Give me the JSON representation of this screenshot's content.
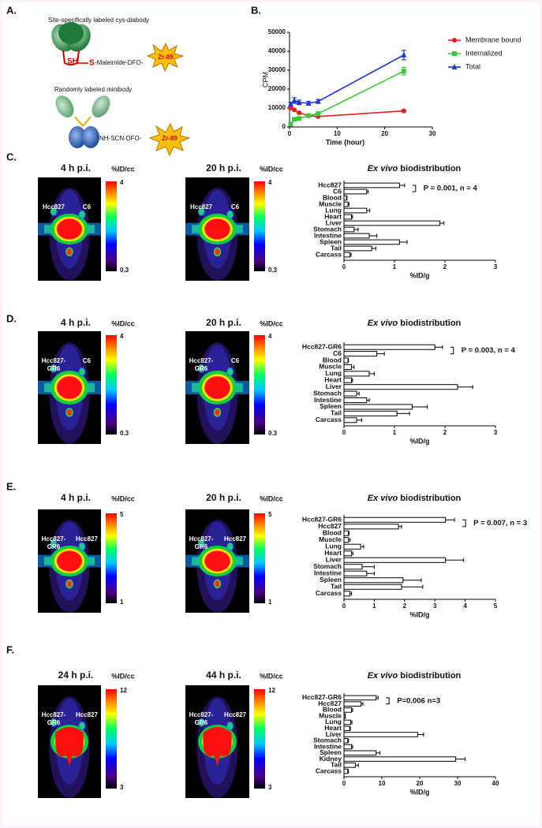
{
  "panel_a": {
    "label": "A.",
    "top_title": "Site-specifically labeled cys-diabody",
    "sh": "SH",
    "s": "S",
    "linker_top": "-Maleimide-DFO-",
    "isotope": "Zr-89",
    "bottom_title": "Randomly labeled minibody",
    "linker_bottom": "NH-SCN-DFO-"
  },
  "panel_b": {
    "label": "B."
  },
  "image_rows": [
    {
      "label": "C.",
      "colorbar": {
        "title": "%ID/cc",
        "max": 4,
        "min": 0.3
      },
      "images": [
        {
          "time": "4 h p.i.",
          "tumors": [
            [
              "Hcc827"
            ],
            [
              "C6"
            ]
          ]
        },
        {
          "time": "20 h p.i.",
          "tumors": [
            [
              "Hcc827"
            ],
            [
              "C6"
            ]
          ]
        }
      ]
    },
    {
      "label": "D.",
      "colorbar": {
        "title": "%ID/cc",
        "max": 4,
        "min": 0.3
      },
      "images": [
        {
          "time": "4 h p.i.",
          "tumors": [
            [
              "Hcc827-",
              "GR6"
            ],
            [
              "C6"
            ]
          ]
        },
        {
          "time": "20 h p.i.",
          "tumors": [
            [
              "Hcc827-",
              "GR6"
            ],
            [
              "C6"
            ]
          ]
        }
      ]
    },
    {
      "label": "E.",
      "colorbar": {
        "title": "%ID/cc",
        "max": 5,
        "min": 1
      },
      "images": [
        {
          "time": "4 h p.i.",
          "tumors": [
            [
              "Hcc827-",
              "GR6"
            ],
            [
              "Hcc827"
            ]
          ]
        },
        {
          "time": "20 h p.i.",
          "tumors": [
            [
              "Hcc827-",
              "GR6"
            ],
            [
              "Hcc827"
            ]
          ]
        }
      ]
    },
    {
      "label": "F.",
      "colorbar": {
        "title": "%ID/cc",
        "max": 12,
        "min": 3
      },
      "images": [
        {
          "time": "24 h p.i.",
          "tumors": [
            [
              "Hcc827-",
              "GR6"
            ],
            [
              "Hcc827"
            ]
          ]
        },
        {
          "time": "44 h p.i.",
          "tumors": [
            [
              "Hcc827-",
              "GR6"
            ],
            [
              "Hcc827"
            ]
          ]
        }
      ]
    }
  ],
  "chart_data": [
    {
      "type": "line",
      "xlabel": "Time (hour)",
      "ylabel": "CPM",
      "x": [
        0.25,
        1,
        2,
        4,
        6,
        24
      ],
      "series": [
        {
          "name": "Membrane bound",
          "color": "#e0201c",
          "marker": "circle",
          "values": [
            10000,
            9000,
            7500,
            6000,
            5500,
            8500
          ],
          "errors": [
            500,
            400,
            400,
            300,
            300,
            500
          ]
        },
        {
          "name": "Internalized",
          "color": "#3cc83c",
          "marker": "square",
          "values": [
            1500,
            4000,
            4500,
            6000,
            7000,
            29500
          ],
          "errors": [
            300,
            400,
            400,
            500,
            500,
            2000
          ]
        },
        {
          "name": "Total",
          "color": "#2036d0",
          "marker": "triangle",
          "values": [
            12000,
            14000,
            13000,
            12500,
            13500,
            38000
          ],
          "errors": [
            1000,
            1500,
            1200,
            1000,
            1000,
            2500
          ]
        }
      ],
      "xlim": [
        0,
        30
      ],
      "xticks": [
        0,
        10,
        20,
        30
      ],
      "ylim": [
        0,
        50000
      ],
      "yticks": [
        0,
        10000,
        20000,
        30000,
        40000,
        50000
      ]
    },
    {
      "type": "hbar",
      "title_italic": "Ex vivo",
      "title": "biodistribution",
      "xlabel": "%ID/g",
      "annotation": "P = 0.001, n = 4",
      "categories": [
        "Hcc827",
        "C6",
        "Blood",
        "Muscle",
        "Lung",
        "Heart",
        "Liver",
        "Stomach",
        "Intestine",
        "Spleen",
        "Tail",
        "Carcass"
      ],
      "values": [
        1.1,
        0.45,
        0.05,
        0.08,
        0.45,
        0.15,
        1.9,
        0.2,
        0.5,
        1.1,
        0.55,
        0.12
      ],
      "errors": [
        0.1,
        0.03,
        0.01,
        0.02,
        0.06,
        0.02,
        0.08,
        0.08,
        0.15,
        0.15,
        0.08,
        0.02
      ],
      "xlim": [
        0,
        3
      ],
      "xticks": [
        0,
        1,
        2,
        3
      ]
    },
    {
      "type": "hbar",
      "title_italic": "Ex vivo",
      "title": "biodistribution",
      "xlabel": "%ID/g",
      "annotation": "P = 0.003, n = 4",
      "categories": [
        "Hcc827-GR6",
        "C6",
        "Blood",
        "Muscle",
        "Lung",
        "Heart",
        "Liver",
        "Stomach",
        "Intestine",
        "Spleen",
        "Tail",
        "Carcass"
      ],
      "values": [
        1.8,
        0.65,
        0.08,
        0.15,
        0.5,
        0.15,
        2.25,
        0.25,
        0.45,
        1.35,
        1.05,
        0.25
      ],
      "errors": [
        0.15,
        0.15,
        0.01,
        0.05,
        0.1,
        0.02,
        0.3,
        0.05,
        0.05,
        0.3,
        0.25,
        0.1
      ],
      "xlim": [
        0,
        3
      ],
      "xticks": [
        0,
        1,
        2,
        3
      ]
    },
    {
      "type": "hbar",
      "title_italic": "Ex vivo",
      "title": "biodistribution",
      "xlabel": "%ID/g",
      "annotation": "P = 0.007, n = 3",
      "categories": [
        "Hcc827-GR6",
        "Hcc827",
        "Blood",
        "Muscle",
        "Lung",
        "Heart",
        "Liver",
        "Stomach",
        "Intestine",
        "Spleen",
        "Tail",
        "Carcass"
      ],
      "values": [
        3.35,
        1.8,
        0.15,
        0.15,
        0.55,
        0.25,
        3.35,
        0.6,
        0.75,
        1.95,
        1.9,
        0.2
      ],
      "errors": [
        0.3,
        0.1,
        0.02,
        0.05,
        0.1,
        0.05,
        0.6,
        0.4,
        0.25,
        0.6,
        0.7,
        0.05
      ],
      "xlim": [
        0,
        5
      ],
      "xticks": [
        0,
        1,
        2,
        3,
        4,
        5
      ]
    },
    {
      "type": "hbar",
      "title_italic": "Ex vivo",
      "title": "biodistribution",
      "xlabel": "%ID/g",
      "annotation": "P=0.006 n=3",
      "categories": [
        "Hcc827-GR6",
        "Hcc827",
        "Blood",
        "Muscle",
        "Lung",
        "Heart",
        "Liver",
        "Stomach",
        "Intestine",
        "Spleen",
        "Kidney",
        "Tail",
        "Carcass"
      ],
      "values": [
        8.5,
        4.5,
        2,
        0.3,
        1.8,
        1.5,
        19.5,
        1,
        2,
        8.5,
        29.5,
        3,
        1
      ],
      "errors": [
        0.5,
        0.5,
        0.3,
        0.05,
        0.3,
        0.2,
        1.5,
        0.2,
        0.3,
        1,
        2.5,
        0.8,
        0.2
      ],
      "xlim": [
        0,
        40
      ],
      "xticks": [
        0,
        10,
        20,
        30,
        40
      ]
    }
  ]
}
